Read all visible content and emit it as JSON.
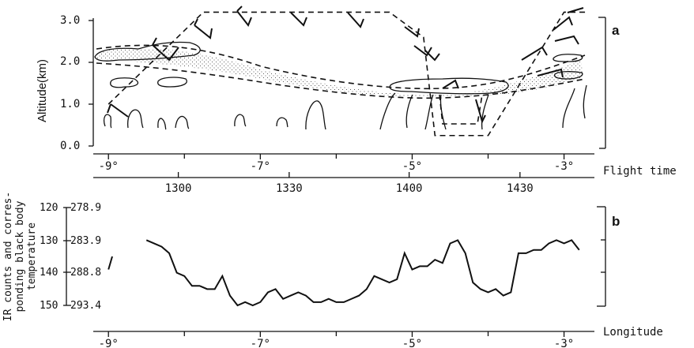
{
  "chart_data": [
    {
      "type": "line",
      "panel": "a",
      "ylabel": "Altitude(km)",
      "yticks": [
        "3.0",
        "2.0",
        "1.0",
        "0.0"
      ],
      "ylim": [
        0,
        3.2
      ],
      "xlim": [
        -9.2,
        -2.6
      ],
      "lon_ticks": [
        -9,
        -7,
        -5,
        -3
      ],
      "lon_tick_labels": [
        "-9°",
        "-7°",
        "-5°",
        "-3°"
      ],
      "time_axis_label": "Flight time",
      "time_ticks": [
        "1300",
        "1330",
        "1400",
        "1430"
      ],
      "time_tick_lon": [
        -8.08,
        -6.62,
        -5.04,
        -3.58
      ],
      "series": [
        {
          "name": "",
          "style": "dashed",
          "x": [
            -9.0,
            -7.75,
            -5.3,
            -4.85,
            -4.7,
            -4.0,
            -3.0,
            -2.7
          ],
          "y": [
            1.0,
            3.2,
            3.2,
            2.6,
            0.25,
            0.25,
            3.2,
            3.2
          ]
        }
      ]
    },
    {
      "type": "line",
      "panel": "b",
      "xlabel": "Longitude",
      "ylabel": "IR counts and corres- ponding black body temperature",
      "ylim": [
        120,
        152
      ],
      "xlim": [
        -9.2,
        -2.6
      ],
      "counts_ticks": [
        "120",
        "130",
        "140",
        "150"
      ],
      "temp_ticks": [
        "278.9",
        "283.9",
        "288.8",
        "293.4"
      ],
      "right_tick_values": [
        130,
        140
      ],
      "lon_ticks": [
        -9,
        -7,
        -5,
        -3
      ],
      "lon_tick_labels": [
        "-9°",
        "-7°",
        "-5°",
        "-3°"
      ],
      "series": [
        {
          "name": "",
          "x": [
            -8.5,
            -8.4,
            -8.3,
            -8.2,
            -8.1,
            -8.0,
            -7.9,
            -7.8,
            -7.7,
            -7.6,
            -7.5,
            -7.4,
            -7.3,
            -7.2,
            -7.1,
            -7.0,
            -6.9,
            -6.8,
            -6.7,
            -6.6,
            -6.5,
            -6.4,
            -6.3,
            -6.2,
            -6.1,
            -6.0,
            -5.9,
            -5.8,
            -5.7,
            -5.6,
            -5.5,
            -5.4,
            -5.3,
            -5.2,
            -5.1,
            -5.0,
            -4.9,
            -4.8,
            -4.7,
            -4.6,
            -4.5,
            -4.4,
            -4.3,
            -4.2,
            -4.1,
            -4.0,
            -3.9,
            -3.8,
            -3.7,
            -3.6,
            -3.5,
            -3.4,
            -3.3,
            -3.2,
            -3.1,
            -3.0,
            -2.9,
            -2.8
          ],
          "y": [
            130,
            131,
            132,
            134,
            140,
            141,
            144,
            144,
            145,
            145,
            141,
            147,
            150,
            149,
            150,
            149,
            146,
            145,
            148,
            147,
            146,
            147,
            149,
            149,
            148,
            149,
            149,
            148,
            147,
            145,
            141,
            142,
            143,
            142,
            134,
            139,
            138,
            138,
            136,
            137,
            131,
            130,
            134,
            143,
            145,
            146,
            145,
            147,
            146,
            134,
            134,
            133,
            133,
            131,
            130,
            131,
            130,
            133
          ]
        },
        {
          "name": "",
          "x": [
            -9.0,
            -8.95
          ],
          "y": [
            139,
            135
          ]
        }
      ]
    }
  ],
  "panel_labels": {
    "a": "a",
    "b": "b"
  }
}
